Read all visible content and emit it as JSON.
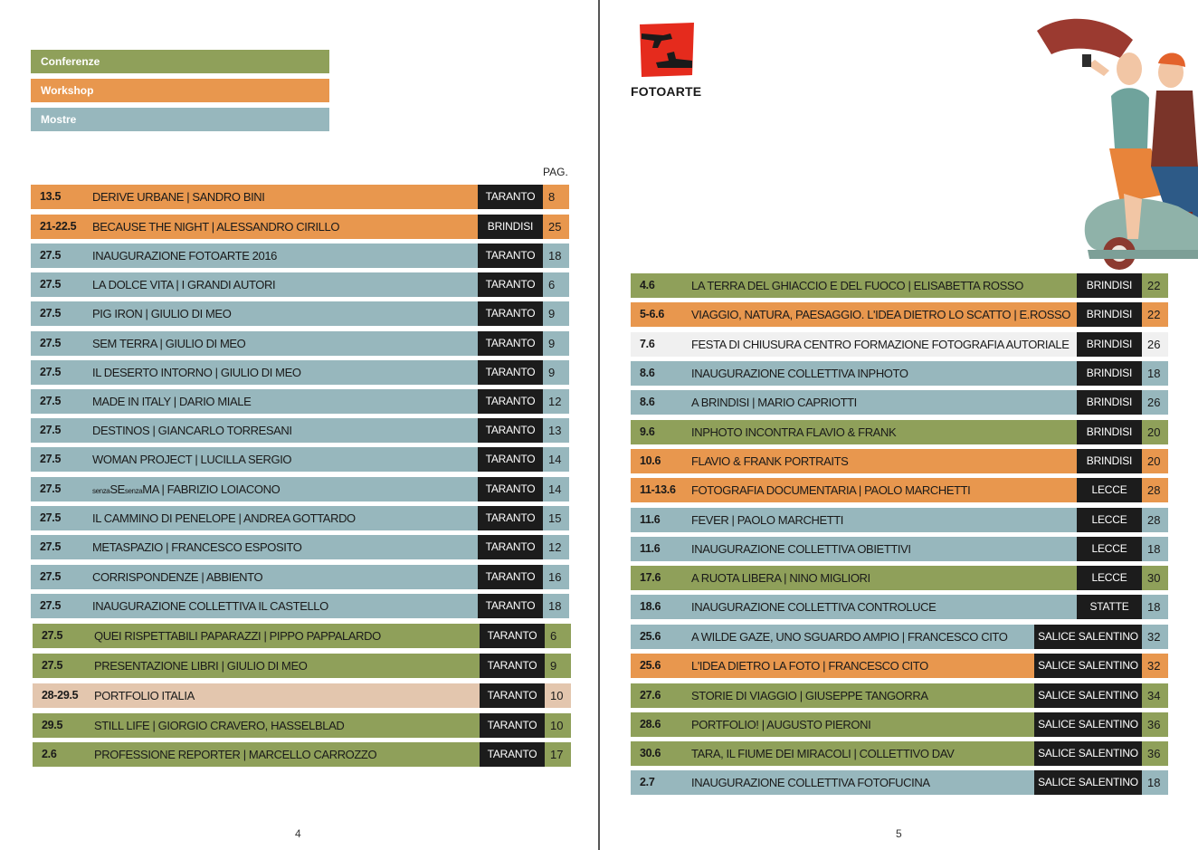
{
  "legend": {
    "conferenze": "Conferenze",
    "workshop": "Workshop",
    "mostre": "Mostre"
  },
  "colors": {
    "conferenze": "#8fa05a",
    "workshop": "#e8974e",
    "mostre": "#97b7bd",
    "portfolio": "#e3c6ae",
    "festa": "#f0f0f0",
    "city_bg": "#1c1c1c"
  },
  "pag_label": "PAG.",
  "left_events": [
    {
      "date": "13.5",
      "title": "DERIVE URBANE | SANDRO BINI",
      "city": "TARANTO",
      "page": "8"
    },
    {
      "date": "21-22.5",
      "title": "BECAUSE THE NIGHT | ALESSANDRO CIRILLO",
      "city": "BRINDISI",
      "page": "25"
    },
    {
      "date": "27.5",
      "title": "INAUGURAZIONE FOTOARTE 2016",
      "city": "TARANTO",
      "page": "18"
    },
    {
      "date": "27.5",
      "title": "LA DOLCE VITA | I GRANDI AUTORI",
      "city": "TARANTO",
      "page": "6"
    },
    {
      "date": "27.5",
      "title": "PIG IRON | GIULIO DI MEO",
      "city": "TARANTO",
      "page": "9"
    },
    {
      "date": "27.5",
      "title": "SEM TERRA | GIULIO DI MEO",
      "city": "TARANTO",
      "page": "9"
    },
    {
      "date": "27.5",
      "title": "IL DESERTO INTORNO | GIULIO DI MEO",
      "city": "TARANTO",
      "page": "9"
    },
    {
      "date": "27.5",
      "title": "MADE IN ITALY | DARIO MIALE",
      "city": "TARANTO",
      "page": "12"
    },
    {
      "date": "27.5",
      "title": "DESTINOS | GIANCARLO TORRESANI",
      "city": "TARANTO",
      "page": "13"
    },
    {
      "date": "27.5",
      "title": "WOMAN PROJECT | LUCILLA SERGIO",
      "city": "TARANTO",
      "page": "14"
    },
    {
      "date": "27.5",
      "title_small1": "senza",
      "title_mid1": "SE",
      "title_small2": "senza",
      "title_rest": "MA | FABRIZIO LOIACONO",
      "city": "TARANTO",
      "page": "14"
    },
    {
      "date": "27.5",
      "title": "IL CAMMINO DI PENELOPE | ANDREA GOTTARDO",
      "city": "TARANTO",
      "page": "15"
    },
    {
      "date": "27.5",
      "title": "METASPAZIO | FRANCESCO ESPOSITO",
      "city": "TARANTO",
      "page": "12"
    },
    {
      "date": "27.5",
      "title": "CORRISPONDENZE | ABBIENTO",
      "city": "TARANTO",
      "page": "16"
    },
    {
      "date": "27.5",
      "title": "INAUGURAZIONE COLLETTIVA IL CASTELLO",
      "city": "TARANTO",
      "page": "18"
    },
    {
      "date": "27.5",
      "title": "QUEI RISPETTABILI PAPARAZZI | PIPPO PAPPALARDO",
      "city": "TARANTO",
      "page": "6"
    },
    {
      "date": "27.5",
      "title": "PRESENTAZIONE LIBRI | GIULIO DI MEO",
      "city": "TARANTO",
      "page": "9"
    },
    {
      "date": "28-29.5",
      "title": "PORTFOLIO ITALIA",
      "city": "TARANTO",
      "page": "10"
    },
    {
      "date": "29.5",
      "title": "STILL LIFE | GIORGIO CRAVERO, HASSELBLAD",
      "city": "TARANTO",
      "page": "10"
    },
    {
      "date": "2.6",
      "title": "PROFESSIONE REPORTER | MARCELLO CARROZZO",
      "city": "TARANTO",
      "page": "17"
    }
  ],
  "right_events": [
    {
      "date": "4.6",
      "title": "LA TERRA DEL GHIACCIO E DEL FUOCO | ELISABETTA ROSSO",
      "city": "BRINDISI",
      "page": "22"
    },
    {
      "date": "5-6.6",
      "title": "VIAGGIO, NATURA, PAESAGGIO. L'IDEA DIETRO LO SCATTO | E.ROSSO",
      "city": "BRINDISI",
      "page": "22"
    },
    {
      "date": "7.6",
      "title": "FESTA DI CHIUSURA CENTRO FORMAZIONE FOTOGRAFIA AUTORIALE",
      "city": "BRINDISI",
      "page": "26"
    },
    {
      "date": "8.6",
      "title": "INAUGURAZIONE COLLETTIVA INPHOTO",
      "city": "BRINDISI",
      "page": "18"
    },
    {
      "date": "8.6",
      "title": "A BRINDISI | MARIO CAPRIOTTI",
      "city": "BRINDISI",
      "page": "26"
    },
    {
      "date": "9.6",
      "title": "INPHOTO INCONTRA FLAVIO & FRANK",
      "city": "BRINDISI",
      "page": "20"
    },
    {
      "date": "10.6",
      "title": "FLAVIO & FRANK PORTRAITS",
      "city": "BRINDISI",
      "page": "20"
    },
    {
      "date": "11-13.6",
      "title": "FOTOGRAFIA DOCUMENTARIA | PAOLO MARCHETTI",
      "city": "LECCE",
      "page": "28"
    },
    {
      "date": "11.6",
      "title": "FEVER | PAOLO MARCHETTI",
      "city": "LECCE",
      "page": "28"
    },
    {
      "date": "11.6",
      "title": "INAUGURAZIONE COLLETTIVA OBIETTIVI",
      "city": "LECCE",
      "page": "18"
    },
    {
      "date": "17.6",
      "title": "A RUOTA LIBERA | NINO MIGLIORI",
      "city": "LECCE",
      "page": "30"
    },
    {
      "date": "18.6",
      "title": "INAUGURAZIONE COLLETTIVA CONTROLUCE",
      "city": "STATTE",
      "page": "18"
    },
    {
      "date": "25.6",
      "title": "A WILDE GAZE, UNO SGUARDO AMPIO | FRANCESCO CITO",
      "city": "SALICE SALENTINO",
      "page": "32"
    },
    {
      "date": "25.6",
      "title": "L'IDEA DIETRO LA FOTO | FRANCESCO CITO",
      "city": "SALICE SALENTINO",
      "page": "32"
    },
    {
      "date": "27.6",
      "title": "STORIE DI VIAGGIO | GIUSEPPE TANGORRA",
      "city": "SALICE SALENTINO",
      "page": "34"
    },
    {
      "date": "28.6",
      "title": "PORTFOLIO! | AUGUSTO PIERONI",
      "city": "SALICE SALENTINO",
      "page": "36"
    },
    {
      "date": "30.6",
      "title": "TARA, IL FIUME DEI MIRACOLI | COLLETTIVO DAV",
      "city": "SALICE SALENTINO",
      "page": "36"
    },
    {
      "date": "2.7",
      "title": "INAUGURAZIONE COLLETTIVA FOTOFUCINA",
      "city": "SALICE SALENTINO",
      "page": "18"
    }
  ],
  "logo_text": "FOTOARTE",
  "page_left": "4",
  "page_right": "5"
}
